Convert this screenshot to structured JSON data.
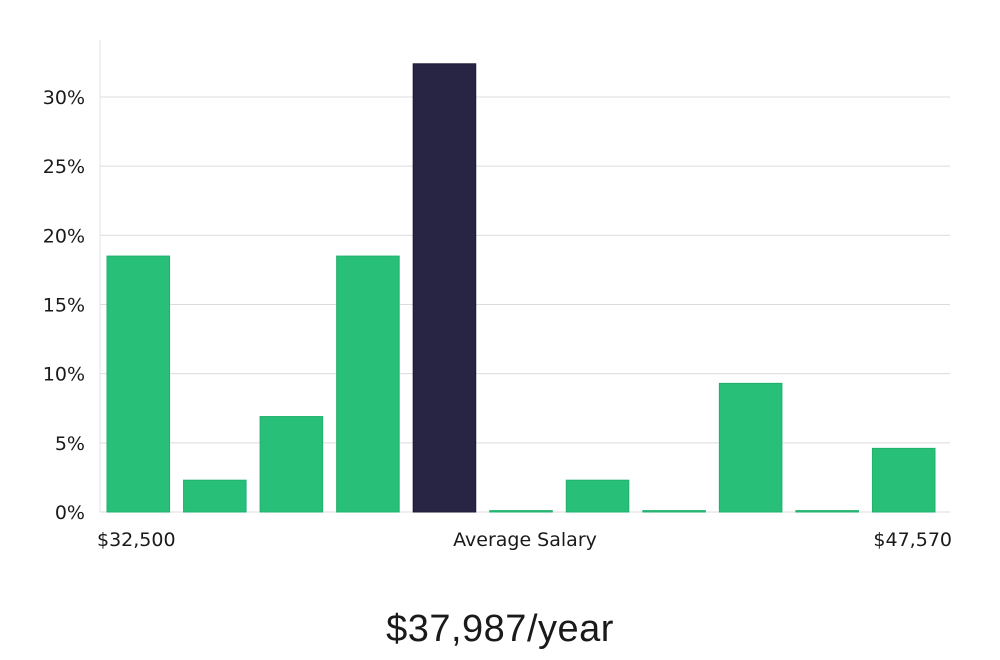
{
  "chart_data": {
    "type": "bar",
    "title": "",
    "xlabel": "Average Salary",
    "ylabel": "",
    "x_min_label": "$32,500",
    "x_max_label": "$47,570",
    "values": [
      18.5,
      2.3,
      6.9,
      18.5,
      32.4,
      0.1,
      2.3,
      0.1,
      9.3,
      0.1,
      4.6
    ],
    "highlight_index": 4,
    "ylim": [
      0,
      33
    ],
    "yticks": [
      0,
      5,
      10,
      15,
      20,
      25,
      30
    ],
    "ytick_labels": [
      "0%",
      "5%",
      "10%",
      "15%",
      "20%",
      "25%",
      "30%"
    ],
    "grid": true,
    "colors": {
      "bar": "#28bf78",
      "highlight": "#272444",
      "grid": "#dcdcdc",
      "axis": "#e3e3e3",
      "text": "#1a1a1a"
    }
  },
  "summary": {
    "salary": "$37,987/year"
  }
}
